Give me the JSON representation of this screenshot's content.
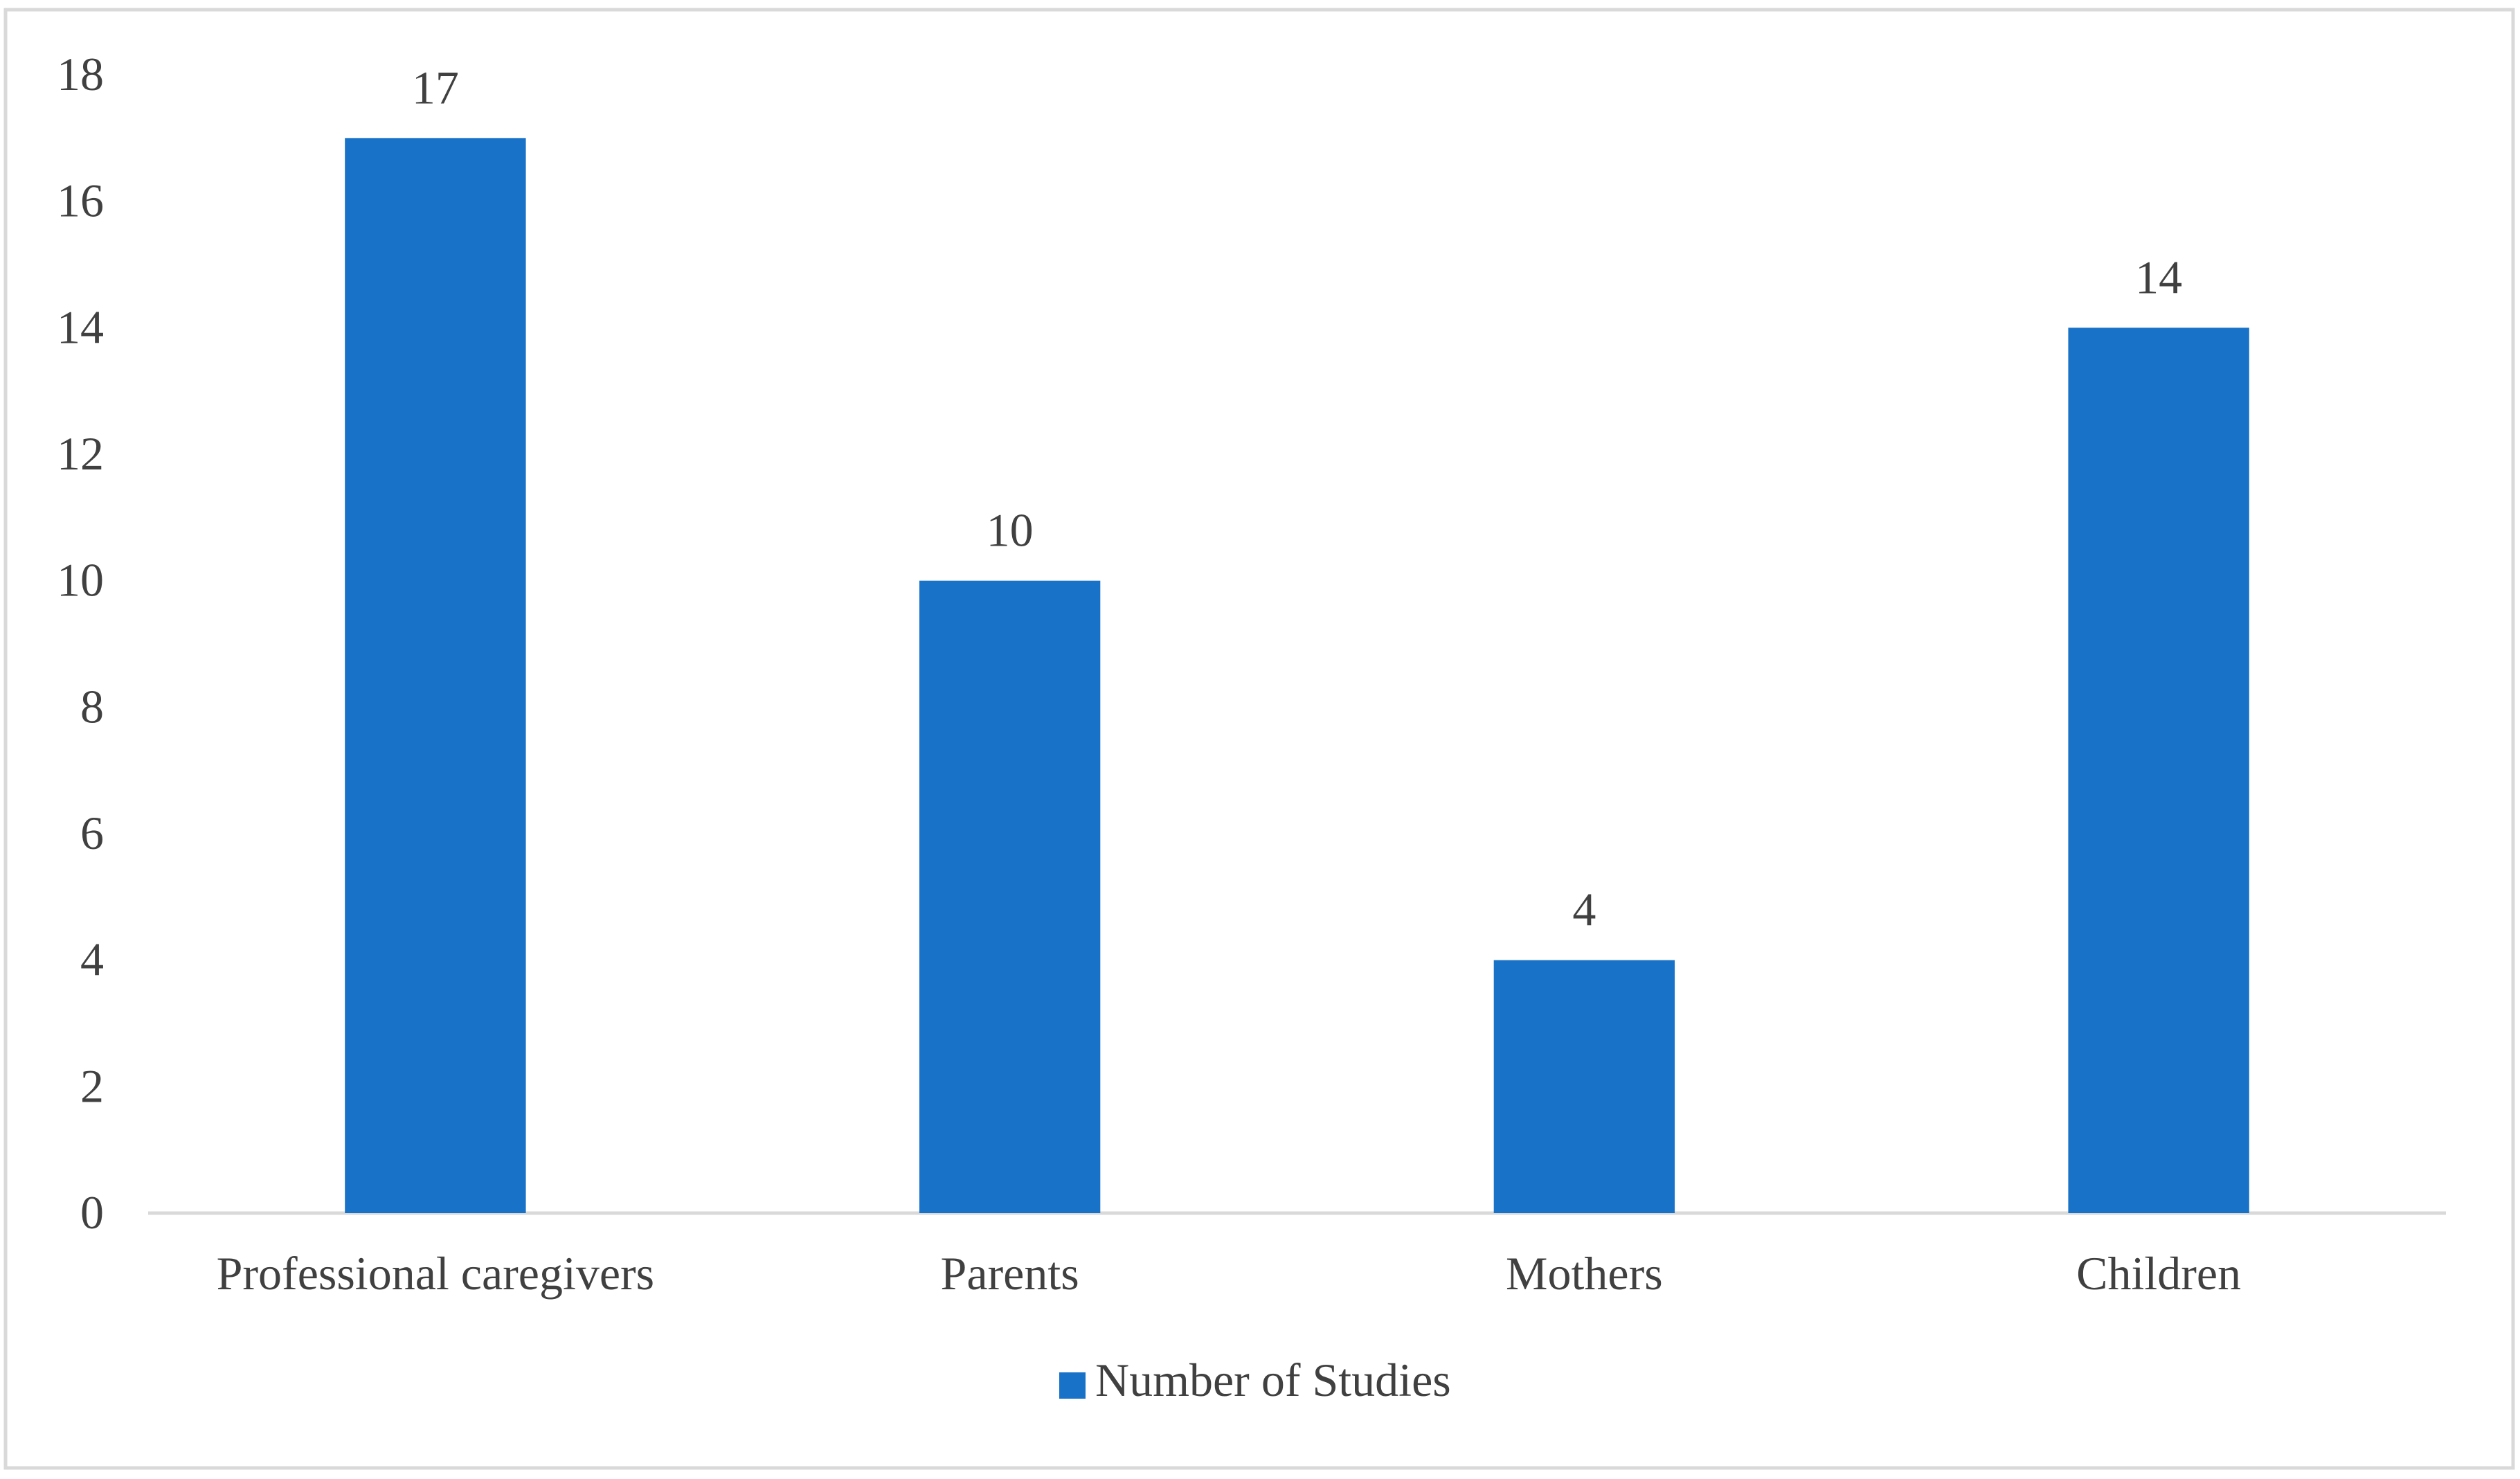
{
  "chart_data": {
    "type": "bar",
    "categories": [
      "Professional caregivers",
      "Parents",
      "Mothers",
      "Children"
    ],
    "series": [
      {
        "name": "Number of Studies",
        "values": [
          17,
          10,
          4,
          14
        ],
        "color": "#1872C8"
      }
    ],
    "data_labels": [
      "17",
      "10",
      "4",
      "14"
    ],
    "ylim": [
      0,
      18
    ],
    "yticks": [
      0,
      2,
      4,
      6,
      8,
      10,
      12,
      14,
      16,
      18
    ],
    "ytick_labels": [
      "0",
      "2",
      "4",
      "6",
      "8",
      "10",
      "12",
      "14",
      "16",
      "18"
    ],
    "title": "",
    "xlabel": "",
    "ylabel": "",
    "grid": false,
    "legend": {
      "position": "bottom",
      "entries": [
        "Number of Studies"
      ]
    },
    "colors": {
      "bar": "#1872C8",
      "text": "#404040",
      "axis": "#D9D9D9",
      "border": "#D9D9D9"
    }
  }
}
